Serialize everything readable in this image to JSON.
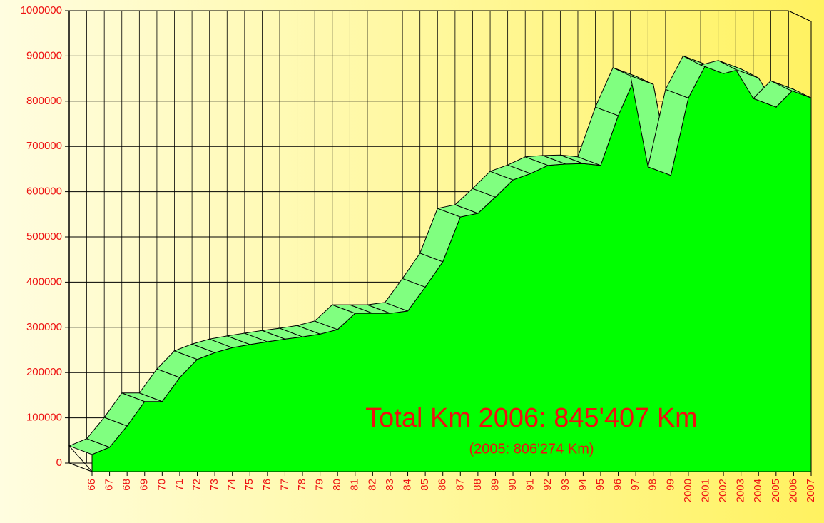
{
  "chart_data": {
    "type": "area3d",
    "categories": [
      "66",
      "67",
      "68",
      "69",
      "70",
      "71",
      "72",
      "73",
      "74",
      "75",
      "76",
      "77",
      "78",
      "79",
      "80",
      "81",
      "82",
      "83",
      "84",
      "85",
      "86",
      "87",
      "88",
      "89",
      "90",
      "91",
      "92",
      "93",
      "94",
      "95",
      "96",
      "97",
      "98",
      "99",
      "2000",
      "2001",
      "2002",
      "2003",
      "2004",
      "2005",
      "2006",
      "2007"
    ],
    "values": [
      38000,
      54000,
      101000,
      155000,
      155000,
      208000,
      248000,
      263000,
      274000,
      281000,
      287000,
      293000,
      298000,
      304000,
      314000,
      350000,
      350000,
      350000,
      355000,
      408000,
      464000,
      563000,
      571000,
      607000,
      645000,
      659000,
      677000,
      680000,
      681000,
      677000,
      787000,
      874000,
      856000,
      655000,
      826000,
      900000,
      880000,
      890000,
      870000,
      806000,
      845000,
      826000
    ],
    "color": "#00ff00",
    "ylim": [
      0,
      1000000
    ],
    "yticks": [
      0,
      100000,
      200000,
      300000,
      400000,
      500000,
      600000,
      700000,
      800000,
      900000,
      1000000
    ],
    "grid": true,
    "annotations": [
      "Total Km 2006:   845'407 Km",
      "(2005: 806'274 Km)"
    ]
  }
}
